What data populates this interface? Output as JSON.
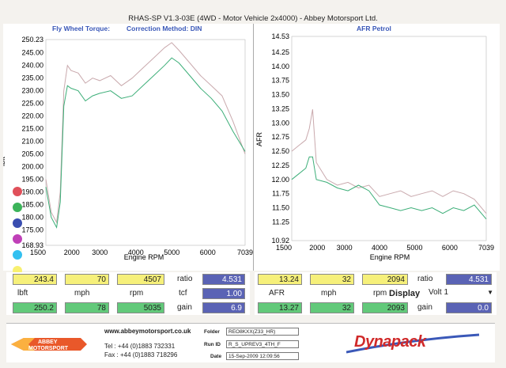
{
  "window_title": "RHAS-SP V1.3-03E  (4WD - Motor Vehicle 2x4000) - Abbey Motorsport Ltd.",
  "left_chart": {
    "title_left": "Fly Wheel Torque:",
    "title_right": "Correction Method: DIN",
    "ylabel": "lbft",
    "xlabel": "Engine RPM",
    "x_ticks": [
      "1500",
      "2000",
      "3000",
      "4000",
      "5000",
      "6000",
      "7039"
    ],
    "y_ticks": [
      "250.23",
      "245.00",
      "240.00",
      "235.00",
      "230.00",
      "225.00",
      "220.00",
      "215.00",
      "210.00",
      "205.00",
      "200.00",
      "195.00",
      "190.00",
      "185.00",
      "180.00",
      "175.00",
      "168.93"
    ]
  },
  "right_chart": {
    "title": "AFR Petrol",
    "ylabel": "AFR",
    "xlabel": "Engine RPM",
    "x_ticks": [
      "1500",
      "2000",
      "3000",
      "4000",
      "5000",
      "6000",
      "7039"
    ],
    "y_ticks": [
      "14.53",
      "14.25",
      "14.00",
      "13.75",
      "13.50",
      "13.25",
      "13.00",
      "12.75",
      "12.50",
      "12.25",
      "12.00",
      "11.75",
      "11.50",
      "11.25",
      "10.92"
    ]
  },
  "legend_colors": [
    "#e0505a",
    "#3cb45a",
    "#3a4eb0",
    "#c040b8",
    "#33c0f0",
    "#f8f070"
  ],
  "colors": {
    "yellow": "#f6f07a",
    "green": "#62c97a",
    "blue": "#5a63b5",
    "run1_line": "#c9a9ad",
    "run2_line": "#3cae78"
  },
  "readout_left": {
    "row1": {
      "lbft": "243.4",
      "mph": "70",
      "rpm": "4507",
      "ratio_label": "ratio",
      "ratio": "4.531"
    },
    "row2": {
      "lbft_label": "lbft",
      "mph_label": "mph",
      "rpm_label": "rpm",
      "tcf_label": "tcf",
      "tcf": "1.00"
    },
    "row3": {
      "lbft": "250.2",
      "mph": "78",
      "rpm": "5035",
      "gain_label": "gain",
      "gain": "6.9"
    }
  },
  "readout_right": {
    "row1": {
      "afr": "13.24",
      "mph": "32",
      "rpm": "2094",
      "ratio_label": "ratio",
      "ratio": "4.531"
    },
    "row2": {
      "afr_label": "AFR",
      "mph_label": "mph",
      "rpm_label": "rpm",
      "display_label": "Display",
      "display_value": "Volt 1"
    },
    "row3": {
      "afr": "13.27",
      "mph": "32",
      "rpm": "2093",
      "gain_label": "gain",
      "gain": "0.0"
    }
  },
  "footer": {
    "logo_line1": "ABBEY",
    "logo_line2": "MOTORSPORT",
    "website": "www.abbeymotorsport.co.uk",
    "tel": "Tel : +44 (0)1883 732331",
    "fax": "Fax : +44 (0)1883 718296",
    "folder_label": "Folder",
    "folder": "REO8KXX(Z33_HR)",
    "runid_label": "Run ID",
    "runid": "R_S_UPREV3_4TH_F",
    "date_label": "Date",
    "date": "15-Sep-2009  12:09:56",
    "brand": "Dynapack"
  },
  "chart_data": [
    {
      "type": "line",
      "title": "Fly Wheel Torque:",
      "xlabel": "Engine RPM",
      "ylabel": "lbft",
      "xlim": [
        1500,
        7039
      ],
      "ylim": [
        168.93,
        250.23
      ],
      "series": [
        {
          "x": [
            1500,
            1650,
            1800,
            1900,
            2000,
            2100,
            2200,
            2400,
            2600,
            2800,
            3000,
            3300,
            3600,
            3900,
            4200,
            4500,
            4800,
            5000,
            5200,
            5500,
            5800,
            6100,
            6400,
            6700,
            7039
          ],
          "values": [
            195,
            182,
            178,
            190,
            230,
            240,
            238,
            237,
            233,
            235,
            234,
            236,
            232,
            235,
            239,
            243,
            247,
            249,
            246,
            241,
            236,
            232,
            228,
            218,
            205
          ]
        },
        {
          "x": [
            1500,
            1650,
            1800,
            1900,
            2000,
            2100,
            2200,
            2400,
            2600,
            2800,
            3000,
            3300,
            3600,
            3900,
            4200,
            4500,
            4800,
            5000,
            5200,
            5500,
            5800,
            6100,
            6400,
            6700,
            7039
          ],
          "values": [
            192,
            180,
            176,
            186,
            224,
            232,
            231,
            230,
            226,
            228,
            229,
            230,
            227,
            228,
            232,
            236,
            240,
            243,
            241,
            236,
            231,
            227,
            222,
            214,
            206
          ]
        }
      ]
    },
    {
      "type": "line",
      "title": "AFR Petrol",
      "xlabel": "Engine RPM",
      "ylabel": "AFR",
      "xlim": [
        1500,
        7039
      ],
      "ylim": [
        10.92,
        14.53
      ],
      "series": [
        {
          "x": [
            1500,
            1700,
            1900,
            2000,
            2094,
            2200,
            2500,
            2800,
            3100,
            3400,
            3700,
            4000,
            4300,
            4600,
            4900,
            5200,
            5500,
            5800,
            6100,
            6400,
            6700,
            7039
          ],
          "values": [
            12.5,
            12.6,
            12.7,
            12.9,
            13.24,
            12.3,
            12.0,
            11.9,
            11.95,
            11.85,
            11.9,
            11.7,
            11.75,
            11.8,
            11.7,
            11.75,
            11.8,
            11.7,
            11.8,
            11.75,
            11.65,
            11.4
          ]
        },
        {
          "x": [
            1500,
            1700,
            1900,
            2000,
            2094,
            2200,
            2500,
            2800,
            3100,
            3400,
            3700,
            4000,
            4300,
            4600,
            4900,
            5200,
            5500,
            5800,
            6100,
            6400,
            6700,
            7039
          ],
          "values": [
            12.0,
            12.1,
            12.2,
            12.4,
            12.4,
            12.0,
            11.95,
            11.85,
            11.8,
            11.9,
            11.8,
            11.55,
            11.5,
            11.45,
            11.5,
            11.45,
            11.5,
            11.4,
            11.5,
            11.45,
            11.55,
            11.3
          ]
        }
      ]
    }
  ]
}
